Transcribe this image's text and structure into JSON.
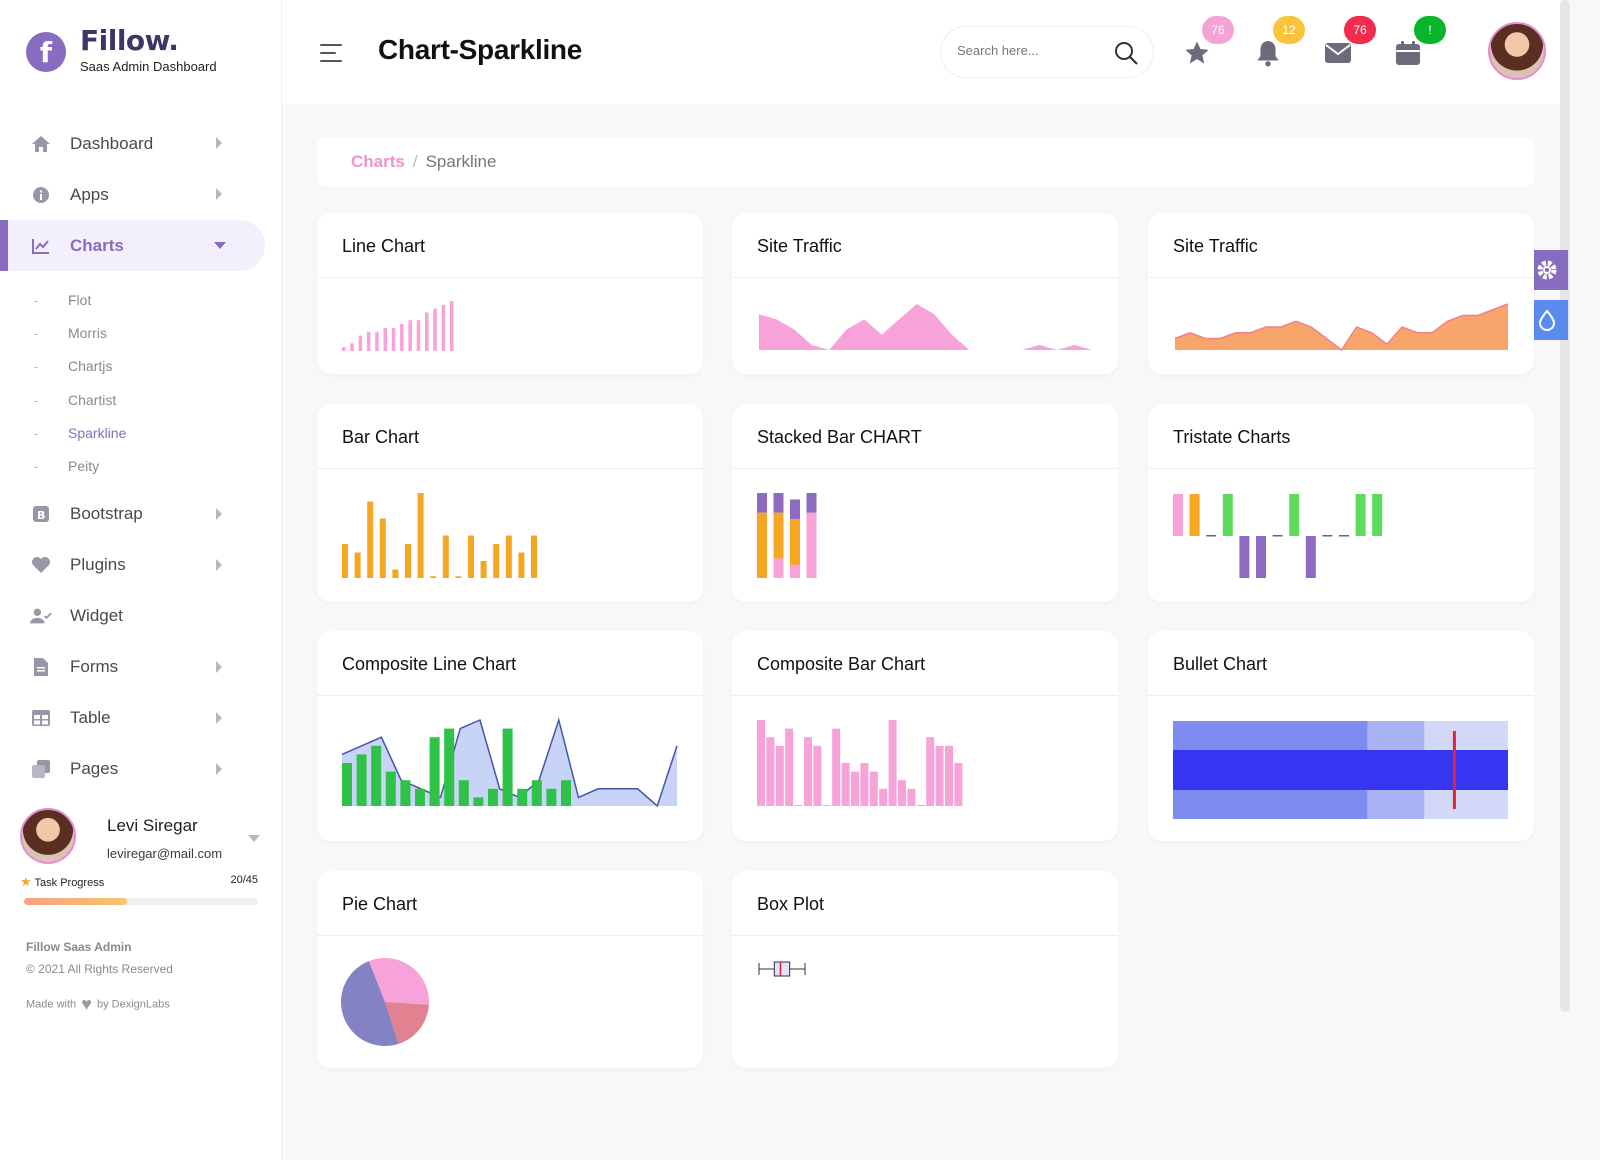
{
  "brand": {
    "logo_letter": "f",
    "name": "Fillow.",
    "subtitle": "Saas Admin Dashboard"
  },
  "header": {
    "title": "Chart-Sparkline",
    "search_placeholder": "Search here...",
    "badges": {
      "favorites": "76",
      "notifications": "12",
      "messages": "76",
      "calendar": "!"
    },
    "badge_colors": {
      "favorites": "#f5a3d6",
      "notifications": "#f9c43b",
      "messages": "#f12c4c",
      "calendar": "#0ab52e"
    }
  },
  "sidebar": {
    "items": [
      {
        "label": "Dashboard",
        "icon": "home-icon"
      },
      {
        "label": "Apps",
        "icon": "info-icon"
      },
      {
        "label": "Charts",
        "icon": "chart-line-icon"
      },
      {
        "label": "Bootstrap",
        "icon": "bootstrap-icon"
      },
      {
        "label": "Plugins",
        "icon": "heart-icon"
      },
      {
        "label": "Widget",
        "icon": "user-check-icon"
      },
      {
        "label": "Forms",
        "icon": "file-icon"
      },
      {
        "label": "Table",
        "icon": "table-icon"
      },
      {
        "label": "Pages",
        "icon": "copy-icon"
      }
    ],
    "chart_sub_items": [
      "Flot",
      "Morris",
      "Chartjs",
      "Chartist",
      "Sparkline",
      "Peity"
    ],
    "active_sub": "Sparkline"
  },
  "profile": {
    "name": "Levi Siregar",
    "email": "leviregar@mail.com",
    "task_label": "Task Progress",
    "task_count": "20/45",
    "task_progress": 0.44
  },
  "footer": {
    "app": "Fillow Saas Admin",
    "rights": "© 2021 All Rights Reserved",
    "made_with": "Made with",
    "by": "by DexignLabs"
  },
  "breadcrumb": {
    "parent": "Charts",
    "separator": "/",
    "current": "Sparkline"
  },
  "cards": {
    "line": "Line Chart",
    "traffic1": "Site Traffic",
    "traffic2": "Site Traffic",
    "bar": "Bar Chart",
    "stacked": "Stacked Bar CHART",
    "tristate": "Tristate Charts",
    "composite_line": "Composite Line Chart",
    "composite_bar": "Composite Bar Chart",
    "bullet": "Bullet Chart",
    "pie": "Pie Chart",
    "box": "Box Plot"
  },
  "colors": {
    "primary": "#886cc0",
    "pink": "#f7a2d8",
    "orange": "#f8a56b",
    "amber": "#f5a623",
    "green": "#2ec247",
    "bright_green": "#5cdb5c",
    "purple": "#8e6bc0",
    "blue": "#3535f2",
    "red": "#e0253a"
  },
  "chart_data": [
    {
      "type": "bar",
      "id": "line-chart",
      "values": [
        1,
        2,
        4,
        5,
        5,
        6,
        6,
        7,
        8,
        8,
        10,
        11,
        12,
        13
      ]
    },
    {
      "type": "area",
      "id": "site-traffic-1",
      "values": [
        7,
        6,
        4,
        1,
        0,
        4,
        6,
        3,
        6,
        9,
        7,
        3,
        0,
        0,
        0,
        0,
        1,
        0,
        1,
        0
      ]
    },
    {
      "type": "area",
      "id": "site-traffic-2",
      "values": [
        2,
        3,
        2,
        2,
        3,
        3,
        4,
        4,
        5,
        4,
        2,
        0,
        4,
        3,
        1,
        4,
        3,
        3,
        5,
        6,
        6,
        7,
        8
      ]
    },
    {
      "type": "bar",
      "id": "bar-chart",
      "values": [
        4,
        3,
        9,
        7,
        1,
        4,
        10,
        0.2,
        5,
        0.2,
        5,
        2,
        4,
        5,
        3,
        5
      ]
    },
    {
      "type": "bar",
      "id": "stacked-bar",
      "categories": [
        "1",
        "2",
        "3",
        "4"
      ],
      "series": [
        {
          "values": [
            0,
            3,
            2,
            10
          ]
        },
        {
          "values": [
            10,
            7,
            7,
            0
          ]
        },
        {
          "values": [
            3,
            3,
            3,
            3
          ]
        }
      ]
    },
    {
      "type": "bar",
      "id": "tristate",
      "values": [
        1,
        1,
        0,
        1,
        -1,
        -1,
        0,
        1,
        -1,
        0,
        0,
        1,
        1
      ]
    },
    {
      "type": "line",
      "id": "composite-line",
      "series": [
        {
          "values": [
            5,
            6,
            7,
            4,
            3,
            2,
            8,
            9,
            3,
            1,
            2,
            9,
            2,
            3,
            2,
            3,
            1,
            6
          ]
        },
        {
          "values": [
            6,
            7,
            8,
            3,
            2,
            1,
            9,
            10,
            2,
            1,
            3,
            10,
            1,
            2,
            2,
            2,
            0,
            7
          ]
        }
      ]
    },
    {
      "type": "bar",
      "id": "composite-bar",
      "values": [
        10,
        8,
        7,
        9,
        0,
        8,
        7,
        0,
        9,
        5,
        4,
        5,
        4,
        2,
        10,
        3,
        2,
        0,
        8,
        7,
        7,
        5
      ]
    },
    {
      "type": "bar",
      "id": "bullet",
      "target": 8.4,
      "performance": 10,
      "ranges": [
        10,
        7.5,
        5.8
      ]
    },
    {
      "type": "pie",
      "id": "pie",
      "values": [
        32,
        19,
        49
      ]
    },
    {
      "type": "bar",
      "id": "box-plot",
      "min": 1,
      "q1": 3,
      "median": 3.8,
      "q3": 5,
      "max": 7
    }
  ]
}
